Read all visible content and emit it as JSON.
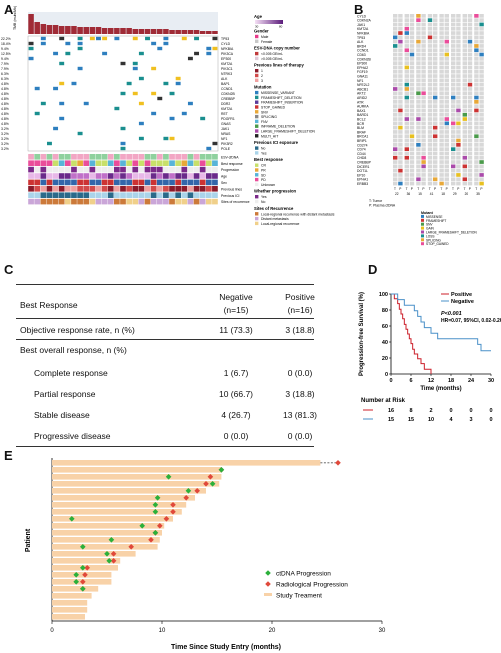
{
  "panel_letters": {
    "a": "A",
    "b": "B",
    "c": "C",
    "d": "D",
    "e": "E"
  },
  "panel_a": {
    "genes": [
      "TP53",
      "CYLD",
      "NFKBIA",
      "PIK3CA",
      "EP300",
      "KMT2A",
      "PIK3C1",
      "NTRK3",
      "ALK",
      "BAP1",
      "CCND1",
      "CDKN2B",
      "CREBBP",
      "DDR2",
      "KMT2A",
      "RET",
      "PDGFR1",
      "GNAS",
      "JAK1",
      "NRAS",
      "NF1",
      "PIK3R2",
      "POLE"
    ],
    "pcts": [
      "22.2%",
      "18.4%",
      "9.4%",
      "12.5%",
      "9.4%",
      "7.9%",
      "7.9%",
      "6.3%",
      "6.3%",
      "4.8%",
      "4.8%",
      "4.8%",
      "4.8%",
      "4.8%",
      "4.8%",
      "4.8%",
      "4.8%",
      "4.8%",
      "3.2%",
      "3.2%",
      "3.2%",
      "3.2%",
      "3.2%"
    ],
    "tmb_label": "TMB (muts/Mb)",
    "annotation_labels": [
      "ESV-cfDNA",
      "Best response",
      "Progression",
      "Age",
      "Sex",
      "Previous lines",
      "Previous ICI",
      "Sites of recurrence"
    ],
    "legend": {
      "age": {
        "title": "Age",
        "values": [
          "30",
          "80"
        ]
      },
      "gender": {
        "title": "Gender",
        "items": [
          "Male",
          "Female"
        ]
      },
      "cnv": {
        "title": "ESV-DNA copy number",
        "items": [
          "<0.005 GE/mL",
          ">0.005 GE/mL"
        ]
      },
      "lines": {
        "title": "Previous lines of therapy",
        "items": [
          "1",
          "2",
          "3"
        ]
      },
      "mutation": {
        "title": "Mutation",
        "items": [
          "MISSENSE_VARIANT",
          "FRAMESHIFT_DELETION",
          "FRAMESHIFT_INSERTION",
          "STOP_GAINED",
          "SNV",
          "SPLICING",
          "FNV",
          "INFRAME_DELETION",
          "LARGE_FRAMESHIFT_DELETION",
          "MULTI_HIT"
        ]
      },
      "ici": {
        "title": "Previous ICI exposure",
        "items": [
          "No",
          "Yes"
        ]
      },
      "best_response": {
        "title": "Best response",
        "items": [
          "CR",
          "PR",
          "SD",
          "PD",
          "Unknown"
        ]
      },
      "progression": {
        "title": "Whether progression",
        "items": [
          "Yes",
          "No"
        ]
      },
      "sites": {
        "title": "Sites of Recurrence",
        "items": [
          "Local-regional recurrence with distant metastasis",
          "Distant metastasis",
          "Local-regional recurrence"
        ]
      }
    }
  },
  "panel_b": {
    "genes": [
      "CYLD",
      "CDKN2A",
      "JAK1",
      "KMT2A",
      "NFKBIA",
      "TP53",
      "ALK",
      "BRD4",
      "CCND1",
      "CD63",
      "CDKN2B",
      "EP300",
      "EPHA2",
      "FGF19",
      "GNA11",
      "NF1",
      "NFE2L2",
      "ABCB1",
      "AKT2",
      "ARID2",
      "ATR",
      "AURKA",
      "BAX1",
      "BARD1",
      "BCL2",
      "BCR",
      "BLM",
      "BRAF",
      "BRCA1",
      "BRIP1",
      "CD274",
      "CD74",
      "CD44",
      "CHD8",
      "CREBBP",
      "DICER1",
      "DOT1L",
      "EP10",
      "EPHA1",
      "ERBB3"
    ],
    "patient_ids": [
      "22",
      "36",
      "15",
      "41",
      "18",
      "29",
      "20",
      "35"
    ],
    "tp_labels": [
      "T",
      "P"
    ],
    "sample_note": [
      "T: Tumor",
      "P: Plasma ctDNA"
    ],
    "legend_title": "Mutant",
    "legend_items": [
      "MISSENSE",
      "FRAMESHIFT",
      "SNV",
      "GAIN",
      "LARGE_FRAMESHIFT_DELETION",
      "LOSS",
      "SPLICING",
      "STOP_GAINED"
    ]
  },
  "panel_c": {
    "header": {
      "col0": "Best Response",
      "col1": "Negative",
      "col1b": "(n=15)",
      "col2": "Positive",
      "col2b": "(n=16)"
    },
    "rows": [
      {
        "label": "Objective response rate, n (%)",
        "neg": "11 (73.3)",
        "pos": "3 (18.8)"
      },
      {
        "label": "Best overall response, n (%)",
        "neg": "",
        "pos": ""
      },
      {
        "label": "Complete response",
        "neg": "1 (6.7)",
        "pos": "0 (0.0)"
      },
      {
        "label": "Partial response",
        "neg": "10 (66.7)",
        "pos": "3 (18.8)"
      },
      {
        "label": "Stable disease",
        "neg": "4 (26.7)",
        "pos": "13 (81.3)"
      },
      {
        "label": "Progressive disease",
        "neg": "0 (0.0)",
        "pos": "0 (0.0)"
      }
    ]
  },
  "panel_d": {
    "ylabel": "Progression-free Survival (%)",
    "xlabel": "Time (months)",
    "legend": {
      "positive": "Positive",
      "negative": "Negative"
    },
    "stats": {
      "p": "P<0.001",
      "hr": "HR=0.07, 95%CI, 0.02-0.26"
    },
    "risk_title": "Number at Risk",
    "risk_rows": [
      {
        "values": [
          "16",
          "8",
          "2",
          "0",
          "0",
          "0"
        ]
      },
      {
        "values": [
          "15",
          "15",
          "10",
          "4",
          "3",
          "0"
        ]
      }
    ],
    "colors": {
      "positive": "#cc1f2a",
      "negative": "#4a90c8"
    }
  },
  "panel_e": {
    "xlabel": "Time Since Study Entry (months)",
    "ylabel": "Patient",
    "legend": {
      "ctdna": "ctDNA Progression",
      "radio": "Radiological Progression",
      "treat": "Study Treament"
    },
    "colors": {
      "bar": "#f8d2a8",
      "ctdna": "#2bb03a",
      "radio": "#e0483a"
    }
  },
  "chart_data": [
    {
      "type": "line",
      "title": "",
      "xlabel": "Time (months)",
      "ylabel": "Progression-free Survival (%)",
      "xlim": [
        0,
        30
      ],
      "ylim": [
        0,
        100
      ],
      "x_ticks": [
        0,
        6,
        12,
        18,
        24,
        30
      ],
      "y_ticks": [
        0,
        20,
        40,
        60,
        80,
        100
      ],
      "series": [
        {
          "name": "Positive",
          "x": [
            0,
            1,
            2,
            2.5,
            3,
            3.5,
            4,
            4.5,
            5,
            5.5,
            6,
            6.5,
            7,
            8,
            9,
            10,
            11,
            12
          ],
          "y": [
            100,
            94,
            88,
            81,
            75,
            69,
            62,
            56,
            50,
            44,
            38,
            31,
            25,
            19,
            13,
            6,
            6,
            0
          ]
        },
        {
          "name": "Negative",
          "x": [
            0,
            2,
            3,
            4,
            6,
            7,
            8,
            9,
            10,
            12,
            14,
            16,
            26,
            27,
            30
          ],
          "y": [
            100,
            93,
            93,
            86,
            86,
            79,
            72,
            65,
            58,
            51,
            44,
            44,
            37,
            29,
            29
          ]
        }
      ]
    },
    {
      "type": "bar",
      "title": "",
      "xlabel": "Time Since Study Entry (months)",
      "ylabel": "Patient",
      "xlim": [
        0,
        30
      ],
      "x_ticks": [
        0,
        10,
        20,
        30
      ],
      "treatment_months": [
        24.4,
        15.4,
        15.4,
        15.2,
        14.0,
        13.0,
        12.2,
        11.8,
        11.0,
        10.2,
        10.0,
        9.8,
        9.6,
        7.6,
        6.2,
        6.0,
        5.4,
        5.4,
        4.2,
        3.6,
        3.2,
        3.2,
        3.0
      ],
      "ctdna_progression_months": [
        15.4,
        10.6,
        14.6,
        12.4,
        9.6,
        9.4,
        9.4,
        1.8,
        8.2,
        9.4,
        5.4,
        2.8,
        5.0,
        5.2,
        2.8,
        2.2,
        2.2,
        2.8
      ],
      "radiological_progression_months": [
        26.0,
        15.4,
        14.4,
        14.0,
        13.2,
        12.2,
        11.0,
        11.0,
        10.4,
        9.8,
        9.4,
        9.0,
        7.2,
        5.6,
        5.6,
        3.2,
        3.0,
        2.8,
        2.8
      ]
    }
  ]
}
